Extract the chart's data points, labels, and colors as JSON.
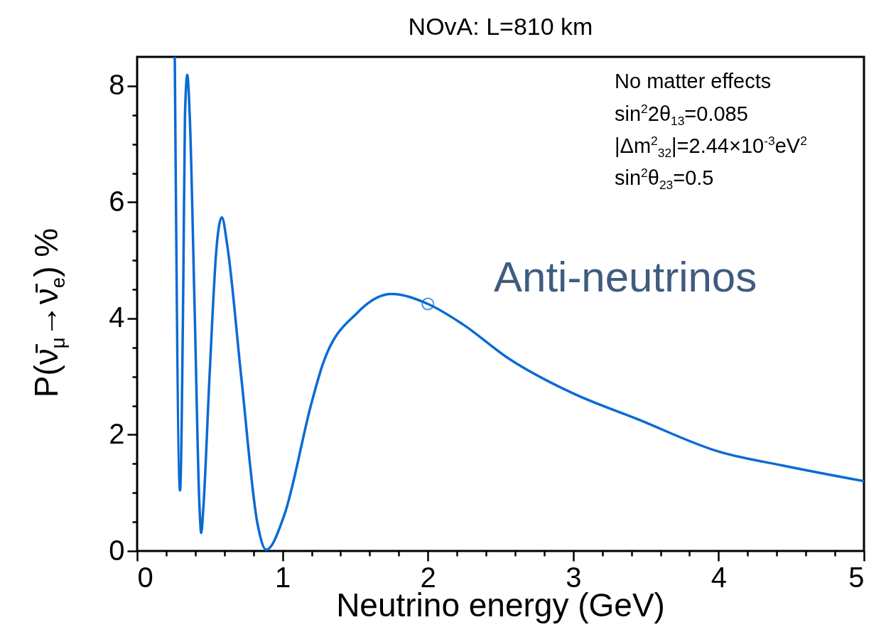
{
  "chart_data": {
    "type": "line",
    "title": "NOvA: L=810 km",
    "xlabel": "Neutrino energy (GeV)",
    "ylabel": "P(ν̄$_{μ}$→ν̄$_{e}$) %",
    "xlim": [
      0,
      5
    ],
    "ylim": [
      0,
      8.5
    ],
    "xticks": [
      0,
      {
        "value": 0.2,
        "label": null
      },
      {
        "value": 0.4,
        "label": null
      },
      {
        "value": 0.6,
        "label": null
      },
      {
        "value": 0.8,
        "label": null
      },
      1,
      {
        "value": 1.2,
        "label": null
      },
      {
        "value": 1.4,
        "label": null
      },
      {
        "value": 1.6,
        "label": null
      },
      {
        "value": 1.8,
        "label": null
      },
      2,
      {
        "value": 2.2,
        "label": null
      },
      {
        "value": 2.4,
        "label": null
      },
      {
        "value": 2.6,
        "label": null
      },
      {
        "value": 2.8,
        "label": null
      },
      3,
      {
        "value": 3.2,
        "label": null
      },
      {
        "value": 3.4,
        "label": null
      },
      {
        "value": 3.6,
        "label": null
      },
      {
        "value": 3.8,
        "label": null
      },
      4,
      {
        "value": 4.2,
        "label": null
      },
      {
        "value": 4.4,
        "label": null
      },
      {
        "value": 4.6,
        "label": null
      },
      {
        "value": 4.8,
        "label": null
      },
      5
    ],
    "yticks": [
      0,
      {
        "value": 0.5,
        "label": null
      },
      {
        "value": 1,
        "label": null
      },
      {
        "value": 1.5,
        "label": null
      },
      2,
      {
        "value": 2.5,
        "label": null
      },
      {
        "value": 3,
        "label": null
      },
      {
        "value": 3.5,
        "label": null
      },
      4,
      {
        "value": 4.5,
        "label": null
      },
      {
        "value": 5,
        "label": null
      },
      {
        "value": 5.5,
        "label": null
      },
      6,
      {
        "value": 6.5,
        "label": null
      },
      {
        "value": 7,
        "label": null
      },
      {
        "value": 7.5,
        "label": null
      },
      8
    ],
    "series": [
      {
        "color": "#0a6ad4",
        "marker": "none",
        "line_style": "solid",
        "x": [
          0.259,
          0.295,
          0.318,
          0.329,
          0.345,
          0.362,
          0.396,
          0.429,
          0.441,
          0.456,
          0.498,
          0.547,
          0.583,
          0.621,
          0.716,
          0.828,
          0.888,
          1.01,
          1.2,
          1.27,
          1.52,
          1.75,
          2.0,
          2.24,
          2.55,
          3.0,
          3.44,
          4.0,
          4.44,
          5.0
        ],
        "values": [
          8.5,
          1.04,
          4.68,
          7.48,
          8.19,
          7.48,
          4.12,
          0.76,
          0.31,
          0.76,
          3.0,
          5.24,
          5.74,
          5.24,
          3.0,
          0.47,
          0.02,
          0.6,
          2.55,
          3.16,
          4.11,
          4.42,
          4.25,
          3.9,
          3.32,
          2.71,
          2.27,
          1.71,
          1.47,
          1.2
        ]
      },
      {
        "type": "scatter",
        "color": "#0a6ad4",
        "marker": "circle",
        "x": [
          2.0
        ],
        "values": [
          4.25
        ]
      }
    ],
    "annotations": [
      "No matter effects",
      "sin$^{2}$2θ$_{13}$=0.085",
      "|Δm$^{2}$$_{32}$|=2.44×10$^{-3}$eV$^{2}$",
      "sin$^{2}$θ$_{23}$=0.5",
      "Anti-neutrinos"
    ]
  }
}
